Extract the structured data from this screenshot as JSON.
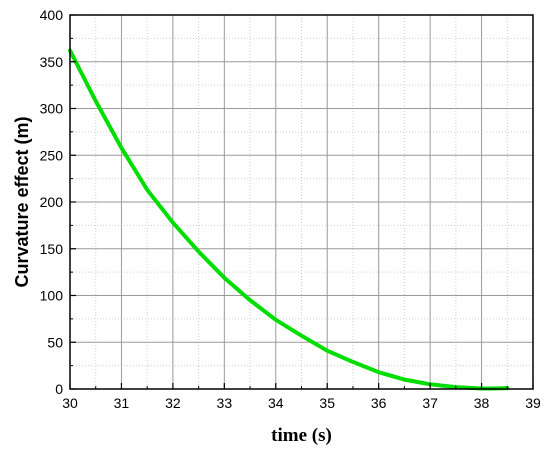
{
  "chart_data": {
    "type": "line",
    "title": "",
    "xlabel": "time (s)",
    "ylabel": "Curvature effect (m)",
    "xlim": [
      30,
      39
    ],
    "ylim": [
      0,
      400
    ],
    "x_ticks": [
      30,
      31,
      32,
      33,
      34,
      35,
      36,
      37,
      38,
      39
    ],
    "y_ticks": [
      0,
      50,
      100,
      150,
      200,
      250,
      300,
      350,
      400
    ],
    "grid": true,
    "legend": "none",
    "series_color": "#00dd00",
    "series": [
      {
        "x": [
          30.0,
          30.5,
          31.0,
          31.5,
          32.0,
          32.5,
          33.0,
          33.5,
          34.0,
          34.5,
          35.0,
          35.5,
          36.0,
          36.5,
          37.0,
          37.5,
          38.0,
          38.2,
          38.5
        ],
        "y": [
          362,
          308,
          258,
          213,
          178,
          147,
          119,
          95,
          74,
          57,
          41,
          29,
          18,
          10,
          5,
          2,
          0.5,
          0.5,
          1
        ]
      }
    ]
  }
}
